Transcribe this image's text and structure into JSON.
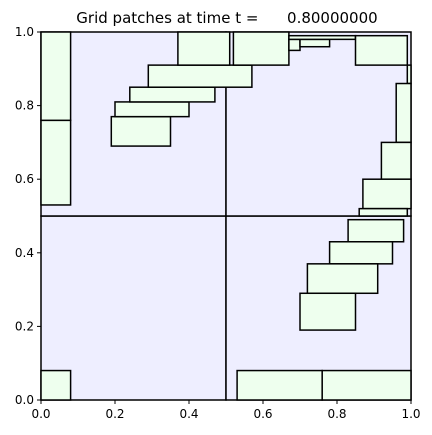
{
  "chart_data": {
    "type": "patches",
    "title": "Grid patches at time t =      0.80000000",
    "xlabel": "",
    "ylabel": "",
    "xlim": [
      0,
      1
    ],
    "ylim": [
      0,
      1
    ],
    "xticks": [
      "0.0",
      "0.2",
      "0.4",
      "0.6",
      "0.8",
      "1.0"
    ],
    "yticks": [
      "0.0",
      "0.2",
      "0.4",
      "0.6",
      "0.8",
      "1.0"
    ],
    "grid": false,
    "colors": {
      "coarse_fill": "#eeeeff",
      "patch_fill": "#eeffee",
      "edge": "#000000"
    },
    "coarse_patches": [
      {
        "x0": 0.0,
        "x1": 0.5,
        "y0": 0.0,
        "y1": 0.5
      },
      {
        "x0": 0.5,
        "x1": 1.0,
        "y0": 0.0,
        "y1": 0.5
      },
      {
        "x0": 0.0,
        "x1": 0.5,
        "y0": 0.5,
        "y1": 1.0
      },
      {
        "x0": 0.5,
        "x1": 1.0,
        "y0": 0.5,
        "y1": 1.0
      }
    ],
    "fine_patches": [
      {
        "x0": 0.0,
        "x1": 0.08,
        "y0": 0.53,
        "y1": 0.76
      },
      {
        "x0": 0.0,
        "x1": 0.08,
        "y0": 0.76,
        "y1": 1.0
      },
      {
        "x0": 0.19,
        "x1": 0.35,
        "y0": 0.69,
        "y1": 0.77
      },
      {
        "x0": 0.2,
        "x1": 0.4,
        "y0": 0.77,
        "y1": 0.81
      },
      {
        "x0": 0.24,
        "x1": 0.47,
        "y0": 0.81,
        "y1": 0.85
      },
      {
        "x0": 0.29,
        "x1": 0.57,
        "y0": 0.85,
        "y1": 0.91
      },
      {
        "x0": 0.37,
        "x1": 0.51,
        "y0": 0.91,
        "y1": 1.0
      },
      {
        "x0": 0.52,
        "x1": 0.67,
        "y0": 0.91,
        "y1": 1.0
      },
      {
        "x0": 0.67,
        "x1": 0.7,
        "y0": 0.95,
        "y1": 0.98
      },
      {
        "x0": 0.7,
        "x1": 0.78,
        "y0": 0.96,
        "y1": 0.98
      },
      {
        "x0": 0.67,
        "x1": 0.85,
        "y0": 0.98,
        "y1": 0.99
      },
      {
        "x0": 0.85,
        "x1": 0.99,
        "y0": 0.91,
        "y1": 0.99
      },
      {
        "x0": 0.99,
        "x1": 1.0,
        "y0": 0.86,
        "y1": 0.91
      },
      {
        "x0": 0.96,
        "x1": 1.0,
        "y0": 0.7,
        "y1": 0.86
      },
      {
        "x0": 0.92,
        "x1": 1.0,
        "y0": 0.6,
        "y1": 0.7
      },
      {
        "x0": 0.87,
        "x1": 1.0,
        "y0": 0.52,
        "y1": 0.6
      },
      {
        "x0": 0.86,
        "x1": 0.99,
        "y0": 0.5,
        "y1": 0.52
      },
      {
        "x0": 0.83,
        "x1": 0.98,
        "y0": 0.43,
        "y1": 0.49
      },
      {
        "x0": 0.78,
        "x1": 0.95,
        "y0": 0.37,
        "y1": 0.43
      },
      {
        "x0": 0.72,
        "x1": 0.91,
        "y0": 0.29,
        "y1": 0.37
      },
      {
        "x0": 0.7,
        "x1": 0.85,
        "y0": 0.19,
        "y1": 0.29
      },
      {
        "x0": 0.0,
        "x1": 0.08,
        "y0": 0.0,
        "y1": 0.08
      },
      {
        "x0": 0.53,
        "x1": 0.76,
        "y0": 0.0,
        "y1": 0.08
      },
      {
        "x0": 0.76,
        "x1": 1.0,
        "y0": 0.0,
        "y1": 0.08
      }
    ]
  }
}
